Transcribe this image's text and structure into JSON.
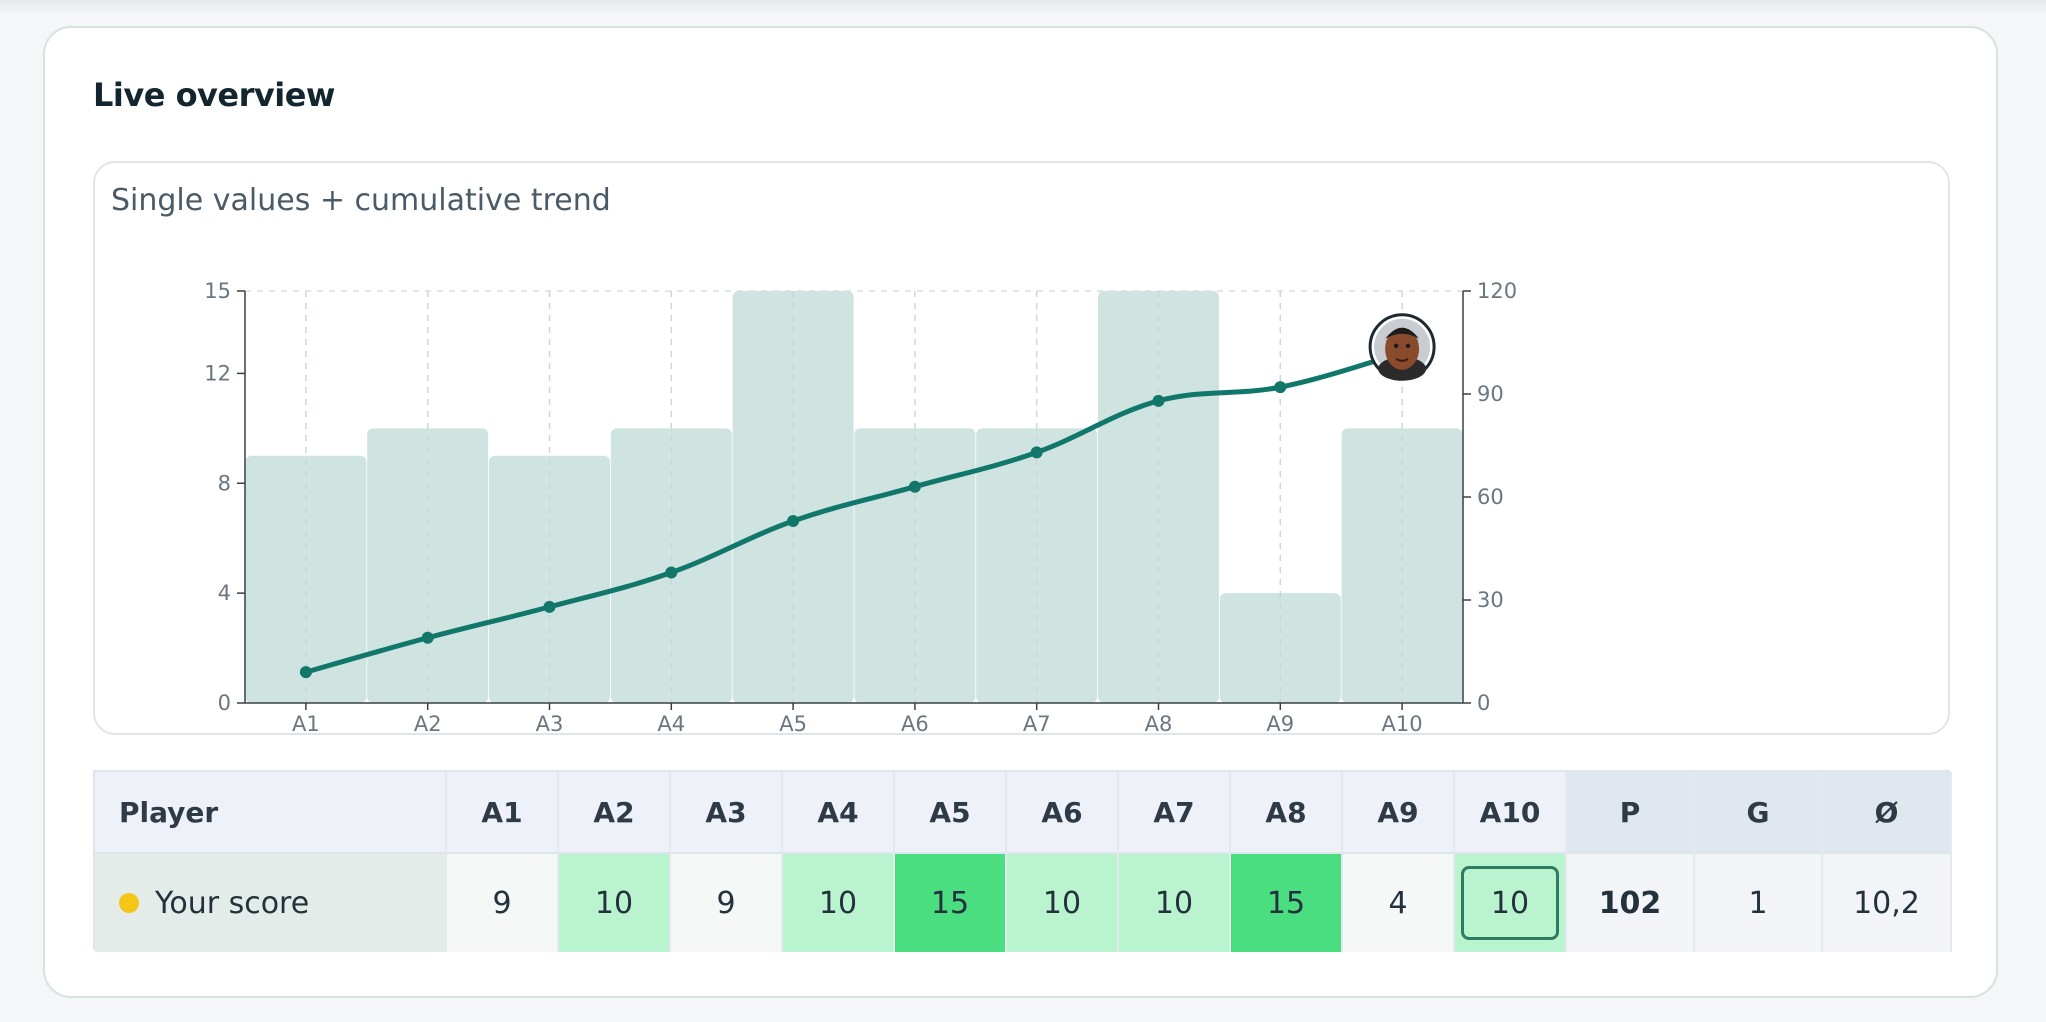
{
  "card": {
    "title": "Live overview"
  },
  "chart_data": {
    "type": "bar+line",
    "title": "Single values + cumulative trend",
    "categories": [
      "A1",
      "A2",
      "A3",
      "A4",
      "A5",
      "A6",
      "A7",
      "A8",
      "A9",
      "A10"
    ],
    "bar_series": {
      "values": [
        9,
        10,
        9,
        10,
        15,
        10,
        10,
        15,
        4,
        10
      ],
      "axis": "left"
    },
    "line_series": {
      "values": [
        9,
        19,
        28,
        38,
        53,
        63,
        73,
        88,
        92,
        102
      ],
      "axis": "right"
    },
    "y_left": {
      "ylim": [
        0,
        15
      ],
      "ticks": [
        0,
        4,
        8,
        12,
        15
      ]
    },
    "y_right": {
      "ylim": [
        0,
        120
      ],
      "ticks": [
        0,
        30,
        60,
        90,
        120
      ]
    },
    "grid": true,
    "colors": {
      "bar": "#cfe3e0",
      "line": "#11776a"
    },
    "marker": {
      "kind": "avatar",
      "at": "A10"
    }
  },
  "table": {
    "headers": [
      "Player",
      "A1",
      "A2",
      "A3",
      "A4",
      "A5",
      "A6",
      "A7",
      "A8",
      "A9",
      "A10",
      "P",
      "G",
      "Ø"
    ],
    "row": {
      "player": "Your score",
      "scores": [
        "9",
        "10",
        "9",
        "10",
        "15",
        "10",
        "10",
        "15",
        "4",
        "10"
      ],
      "levels": [
        "low",
        "mid",
        "low",
        "mid",
        "high",
        "mid",
        "mid",
        "high",
        "low",
        "mid"
      ],
      "total": "102",
      "games": "1",
      "average": "10,2"
    },
    "current_round": "A10",
    "colors": {
      "dot": "#f5c518",
      "mid": "#b9f4cf",
      "high": "#4ade80",
      "ring": "#2f7a63"
    }
  }
}
